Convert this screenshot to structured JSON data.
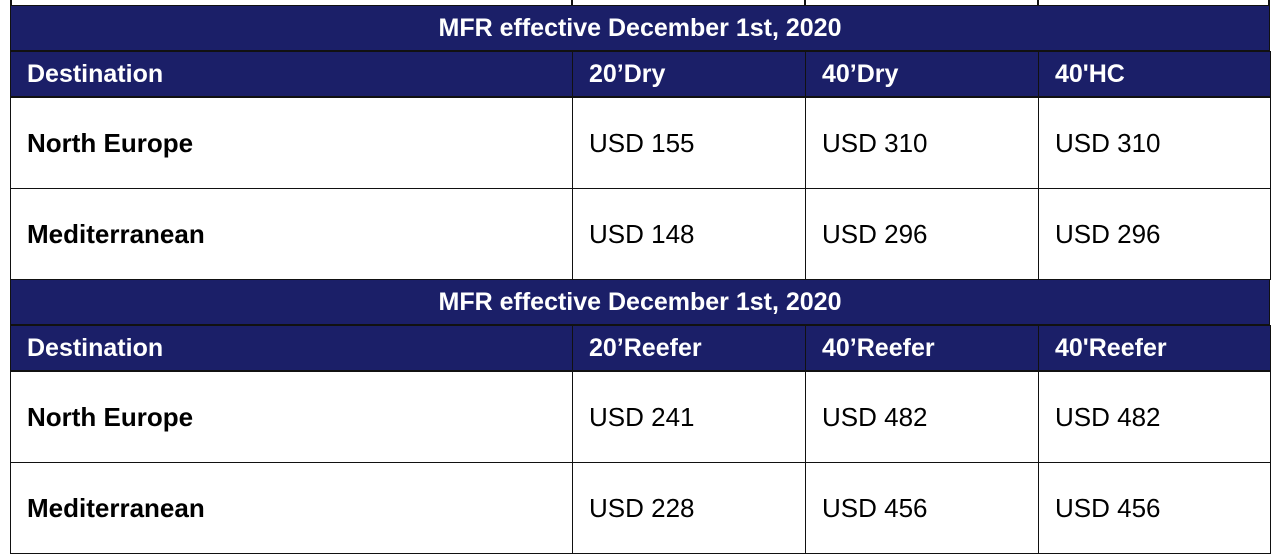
{
  "tables": [
    {
      "title": "MFR effective December 1st, 2020",
      "headers": [
        "Destination",
        "20’Dry",
        "40’Dry",
        "40'HC"
      ],
      "rows": [
        [
          "North Europe",
          "USD 155",
          "USD 310",
          "USD 310"
        ],
        [
          "Mediterranean",
          "USD 148",
          "USD 296",
          "USD 296"
        ]
      ]
    },
    {
      "title": "MFR effective December 1st, 2020",
      "headers": [
        "Destination",
        "20’Reefer",
        "40’Reefer",
        "40'Reefer"
      ],
      "rows": [
        [
          "North Europe",
          "USD 241",
          "USD 482",
          "USD 482"
        ],
        [
          "Mediterranean",
          "USD 228",
          "USD 456",
          "USD 456"
        ]
      ]
    }
  ]
}
